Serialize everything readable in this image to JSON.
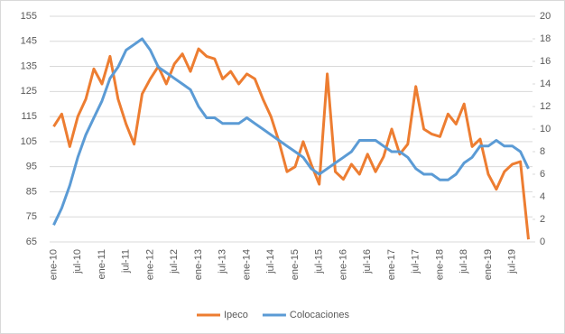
{
  "chart_data": {
    "type": "line",
    "categories": [
      "ene-10",
      null,
      null,
      "jul-10",
      null,
      null,
      "ene-11",
      null,
      null,
      "jul-11",
      null,
      null,
      "ene-12",
      null,
      null,
      "jul-12",
      null,
      null,
      "ene-13",
      null,
      null,
      "jul-13",
      null,
      null,
      "ene-14",
      null,
      null,
      "jul-14",
      null,
      null,
      "ene-15",
      null,
      null,
      "jul-15",
      null,
      null,
      "ene-16",
      null,
      null,
      "jul-16",
      null,
      null,
      "ene-17",
      null,
      null,
      "jul-17",
      null,
      null,
      "ene-18",
      null,
      null,
      "jul-18",
      null,
      null,
      "ene-19",
      null,
      null,
      "jul-19",
      null,
      null
    ],
    "series": [
      {
        "name": "Ipeco",
        "color": "#ED7D31",
        "values": [
          111,
          116,
          103,
          115,
          122,
          134,
          128,
          139,
          122,
          112,
          104,
          124,
          130,
          135,
          128,
          136,
          140,
          133,
          142,
          139,
          138,
          130,
          133,
          128,
          132,
          130,
          122,
          115,
          105,
          93,
          95,
          105,
          96,
          88,
          132,
          93,
          90,
          96,
          92,
          100,
          93,
          99,
          110,
          100,
          104,
          127,
          110,
          108,
          107,
          116,
          112,
          120,
          103,
          106,
          92,
          86,
          93,
          96,
          97,
          66
        ]
      },
      {
        "name": "Colocaciones",
        "color": "#5B9BD5",
        "axis": "y2",
        "values": [
          1.5,
          3,
          5,
          7.5,
          9.5,
          11,
          12.5,
          14.5,
          15.5,
          17,
          17.5,
          18,
          17,
          15.5,
          15,
          14.5,
          14,
          13.5,
          12,
          11,
          11,
          10.5,
          10.5,
          10.5,
          11,
          10.5,
          10,
          9.5,
          9,
          8.5,
          8,
          7.5,
          6.5,
          6,
          6.5,
          7,
          7.5,
          8,
          9,
          9,
          9,
          8.5,
          8,
          8,
          7.5,
          6.5,
          6,
          6,
          5.5,
          5.5,
          6,
          7,
          7.5,
          8.5,
          8.5,
          9,
          8.5,
          8.5,
          8,
          6.5
        ]
      }
    ],
    "ylim": [
      65,
      155
    ],
    "yticks": [
      65,
      75,
      85,
      95,
      105,
      115,
      125,
      135,
      145,
      155
    ],
    "y2lim": [
      0,
      20
    ],
    "y2ticks": [
      0,
      2,
      4,
      6,
      8,
      10,
      12,
      14,
      16,
      18,
      20
    ],
    "grid": true,
    "legend": "bottom"
  }
}
